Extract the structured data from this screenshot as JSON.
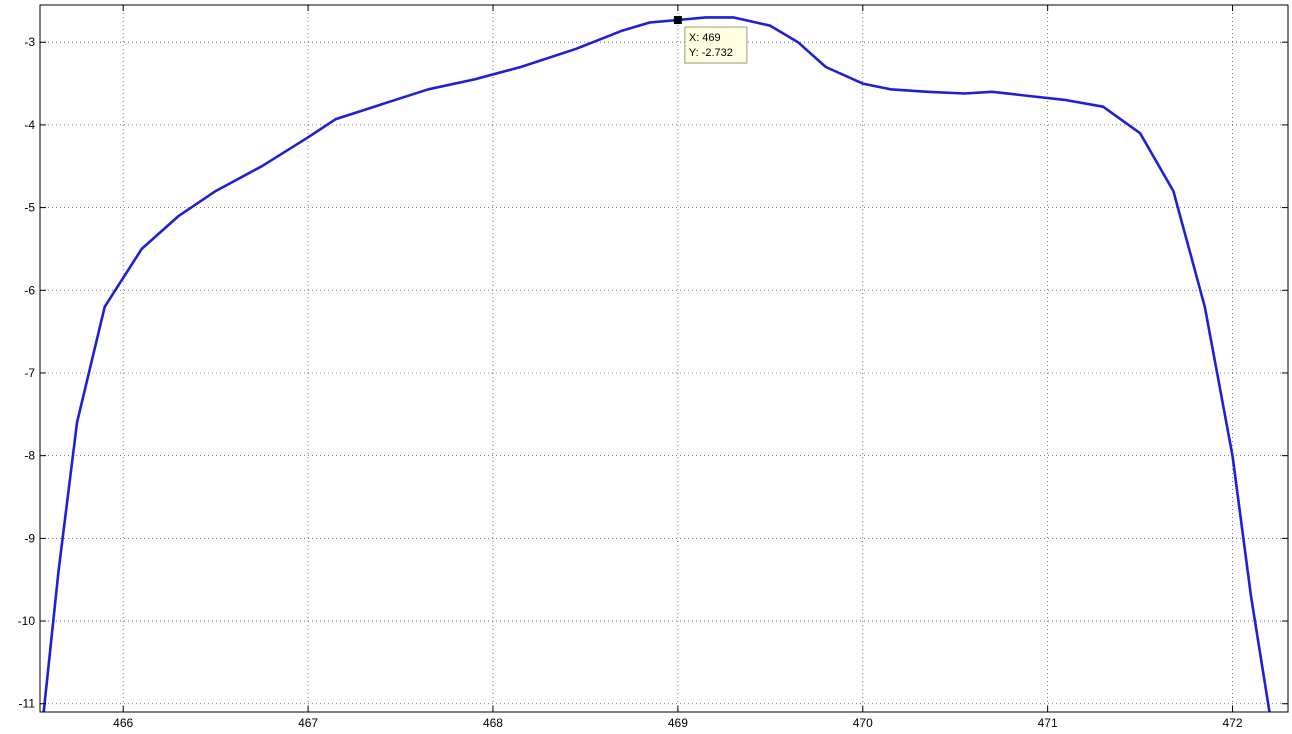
{
  "chart_data": {
    "type": "line",
    "title": "",
    "xlabel": "",
    "ylabel": "",
    "xlim": [
      465.55,
      472.3
    ],
    "ylim": [
      -11.1,
      -2.55
    ],
    "grid": true,
    "grid_style": "dotted",
    "x_ticks": [
      466,
      467,
      468,
      469,
      470,
      471,
      472
    ],
    "x_tick_labels": [
      "466",
      "467",
      "468",
      "469",
      "470",
      "471",
      "472"
    ],
    "y_ticks": [
      -3,
      -4,
      -5,
      -6,
      -7,
      -8,
      -9,
      -10,
      -11
    ],
    "y_tick_labels": [
      "-3",
      "-4",
      "-5",
      "-6",
      "-7",
      "-8",
      "-9",
      "-10",
      "-11"
    ],
    "series": [
      {
        "color": "#1f1fd8",
        "x": [
          465.57,
          465.65,
          465.75,
          465.9,
          466.1,
          466.3,
          466.5,
          466.75,
          467.0,
          467.15,
          467.4,
          467.65,
          467.9,
          468.15,
          468.45,
          468.7,
          468.85,
          469.0,
          469.15,
          469.3,
          469.5,
          469.65,
          469.8,
          470.0,
          470.15,
          470.35,
          470.55,
          470.7,
          470.9,
          471.1,
          471.3,
          471.5,
          471.68,
          471.85,
          472.0,
          472.1,
          472.2
        ],
        "y": [
          -11.1,
          -9.4,
          -7.6,
          -6.2,
          -5.5,
          -5.1,
          -4.8,
          -4.5,
          -4.15,
          -3.93,
          -3.75,
          -3.57,
          -3.45,
          -3.3,
          -3.08,
          -2.86,
          -2.76,
          -2.732,
          -2.7,
          -2.7,
          -2.8,
          -3.0,
          -3.3,
          -3.5,
          -3.57,
          -3.6,
          -3.62,
          -3.6,
          -3.65,
          -3.7,
          -3.78,
          -4.1,
          -4.8,
          -6.2,
          -8.0,
          -9.7,
          -11.1
        ]
      }
    ],
    "datatip": {
      "x": 469,
      "y": -2.732,
      "x_text": "X: 469",
      "y_text": "Y: -2.732"
    }
  }
}
